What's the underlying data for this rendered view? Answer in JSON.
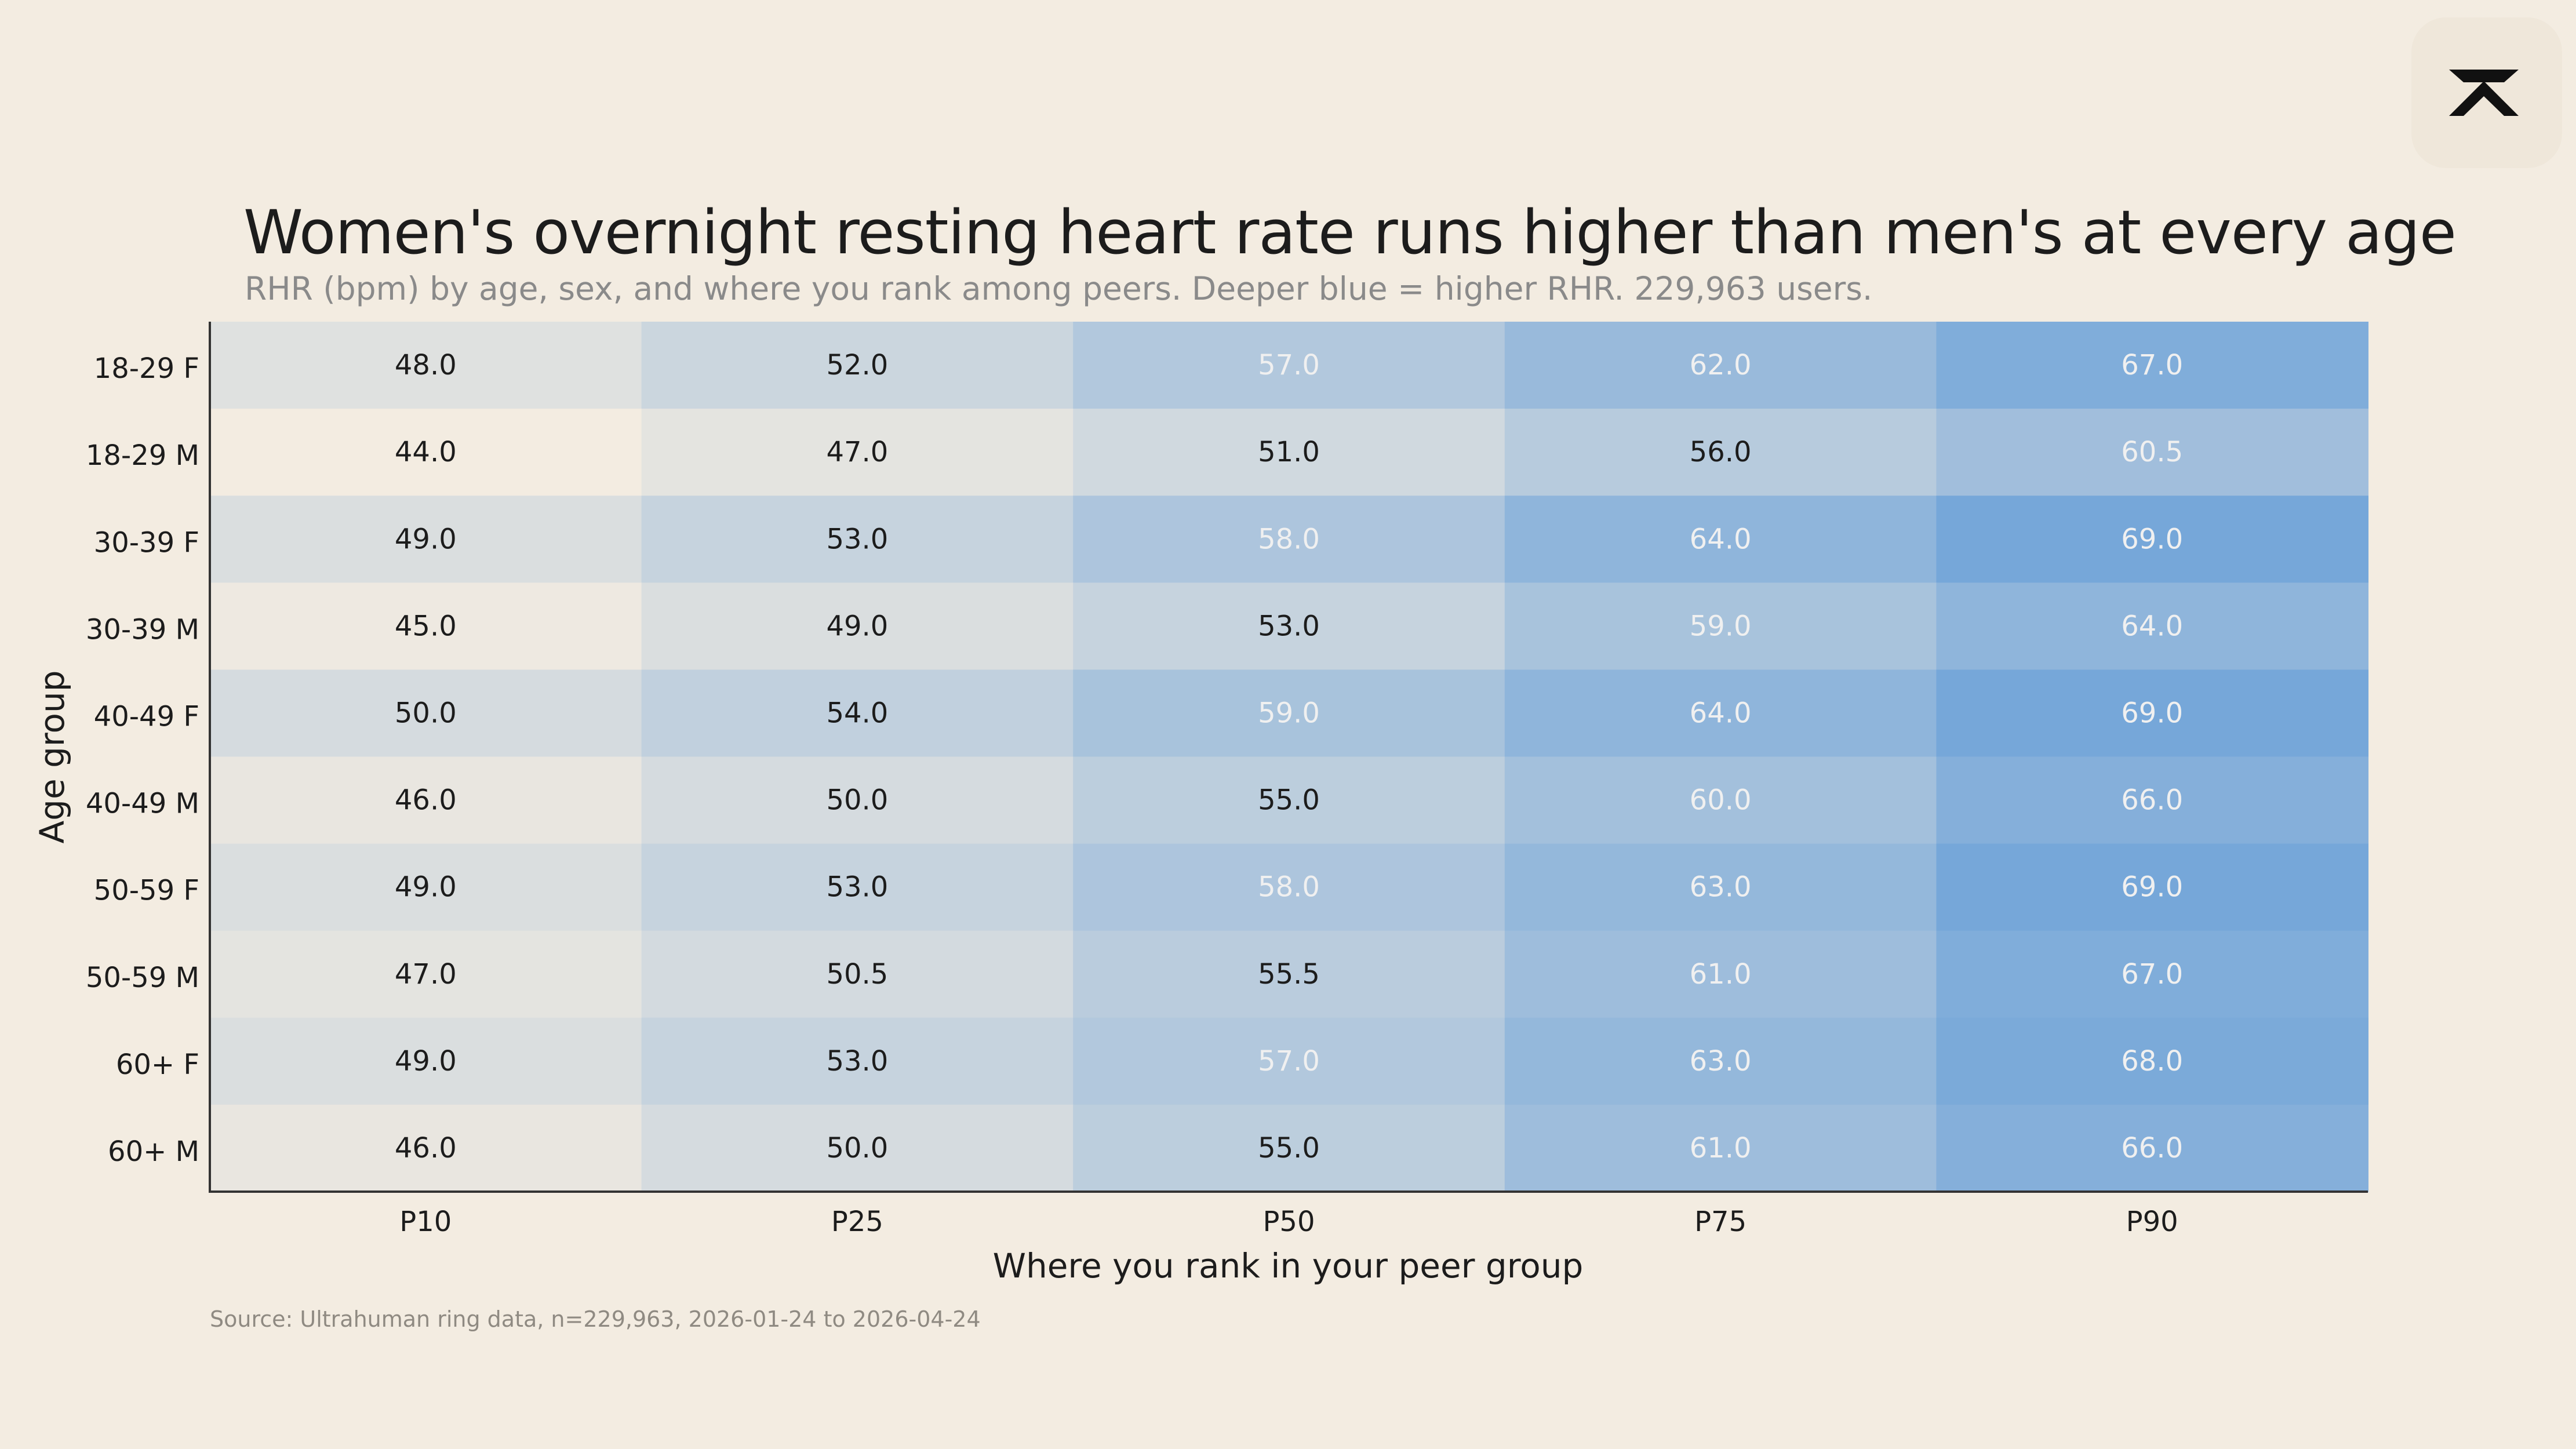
{
  "chart_data": {
    "type": "heatmap",
    "title": "Women's overnight resting heart rate runs higher than men's at every age",
    "subtitle": "RHR (bpm) by age, sex, and where you rank among peers. Deeper blue = higher RHR. 229,963 users.",
    "xlabel": "Where you rank in your peer group",
    "ylabel": "Age group",
    "x_categories": [
      "P10",
      "P25",
      "P50",
      "P75",
      "P90"
    ],
    "y_categories": [
      "18-29 F",
      "18-29 M",
      "30-39 F",
      "30-39 M",
      "40-49 F",
      "40-49 M",
      "50-59 F",
      "50-59 M",
      "60+ F",
      "60+ M"
    ],
    "values": [
      [
        "48.0",
        "52.0",
        "57.0",
        "62.0",
        "67.0"
      ],
      [
        "44.0",
        "47.0",
        "51.0",
        "56.0",
        "60.5"
      ],
      [
        "49.0",
        "53.0",
        "58.0",
        "64.0",
        "69.0"
      ],
      [
        "45.0",
        "49.0",
        "53.0",
        "59.0",
        "64.0"
      ],
      [
        "50.0",
        "54.0",
        "59.0",
        "64.0",
        "69.0"
      ],
      [
        "46.0",
        "50.0",
        "55.0",
        "60.0",
        "66.0"
      ],
      [
        "49.0",
        "53.0",
        "58.0",
        "63.0",
        "69.0"
      ],
      [
        "47.0",
        "50.5",
        "55.5",
        "61.0",
        "67.0"
      ],
      [
        "49.0",
        "53.0",
        "57.0",
        "63.0",
        "68.0"
      ],
      [
        "46.0",
        "50.0",
        "55.0",
        "61.0",
        "66.0"
      ]
    ],
    "color_scale": {
      "low": "#f3ece1",
      "high": "#76a7d9",
      "dark_text": "#1c1c1c",
      "light_text": "#f0f0f0"
    },
    "grid": false
  },
  "source": "Source: Ultrahuman ring data, n=229,963, 2026-01-24 to 2026-04-24",
  "logo": {
    "icon": "ultrahuman-logo-icon"
  }
}
